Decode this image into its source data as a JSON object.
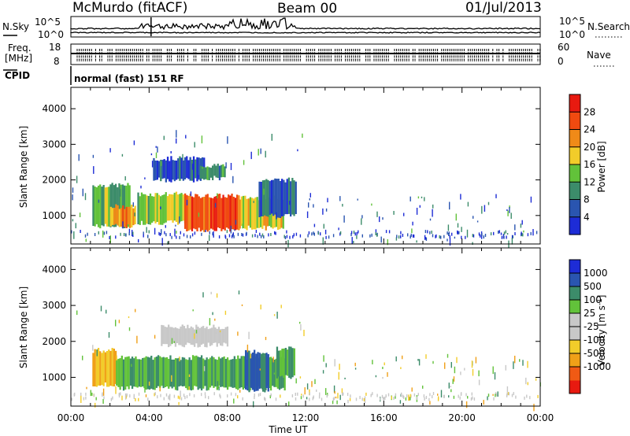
{
  "header": {
    "station": "McMurdo (fitACF)",
    "beam": "Beam 00",
    "date": "01/Jul/2013"
  },
  "noise_panel": {
    "left_label": "N.Sky",
    "right_label": "N.Search",
    "left_ticks": [
      "10^5",
      "10^0"
    ],
    "right_ticks": [
      "10^5",
      "10^0"
    ]
  },
  "freq_panel": {
    "left_label_1": "Freq.",
    "left_label_2": "[MHz]",
    "left_ticks": [
      "18",
      "8"
    ],
    "right_label": "Nave",
    "right_ticks": [
      "60",
      "0"
    ]
  },
  "cpid": {
    "label": "CPID",
    "text": "normal (fast) 151 RF"
  },
  "axes": {
    "ylabel": "Slant Range [km]",
    "xlabel": "Time UT",
    "x_ticks": [
      "00:00",
      "04:00",
      "08:00",
      "12:00",
      "16:00",
      "20:00",
      "00:00"
    ],
    "y_ticks": [
      "1000",
      "2000",
      "3000",
      "4000"
    ]
  },
  "colors": {
    "power": [
      "#1d2cd6",
      "#2a55b0",
      "#3c8c6a",
      "#62c23a",
      "#f2cc2a",
      "#f08a18",
      "#f04a10",
      "#e81a10"
    ],
    "velocity": [
      "#e81a10",
      "#f05a14",
      "#f0a018",
      "#f2cc2a",
      "#c8c8c8",
      "#c8c8c8",
      "#62c23a",
      "#3c8c6a",
      "#2a55b0",
      "#1d2cd6"
    ]
  },
  "chart_data": [
    {
      "type": "heatmap",
      "title": "",
      "xlabel": "",
      "ylabel": "Slant Range [km]",
      "xlim": [
        0,
        24
      ],
      "ylim": [
        200,
        4600
      ],
      "colorbar": {
        "label": "Power [dB]",
        "ticks": [
          "4",
          "8",
          "12",
          "16",
          "20",
          "24",
          "28"
        ],
        "range": [
          0,
          32
        ]
      },
      "regions": [
        {
          "t0": 1.1,
          "t1": 3.0,
          "r0": 700,
          "r1": 1850,
          "value": 13
        },
        {
          "t0": 2.0,
          "t1": 3.3,
          "r0": 700,
          "r1": 1250,
          "value": 21
        },
        {
          "t0": 3.4,
          "t1": 5.8,
          "r0": 800,
          "r1": 1600,
          "value": 15
        },
        {
          "t0": 5.8,
          "t1": 8.6,
          "r0": 600,
          "r1": 1550,
          "value": 27
        },
        {
          "t0": 8.6,
          "t1": 10.9,
          "r0": 650,
          "r1": 1500,
          "value": 19
        },
        {
          "t0": 9.6,
          "t1": 11.5,
          "r0": 1000,
          "r1": 2000,
          "value": 7
        },
        {
          "t0": 4.2,
          "t1": 6.8,
          "r0": 2000,
          "r1": 2600,
          "value": 5
        },
        {
          "t0": 6.5,
          "t1": 7.9,
          "r0": 2050,
          "r1": 2400,
          "value": 11
        }
      ]
    },
    {
      "type": "heatmap",
      "title": "",
      "xlabel": "Time UT",
      "ylabel": "Slant Range [km]",
      "xlim": [
        0,
        24
      ],
      "ylim": [
        200,
        4600
      ],
      "colorbar": {
        "label": "Velocity [m s^-1]",
        "ticks": [
          "1000",
          "500",
          "100",
          "25",
          "-25",
          "-100",
          "-500",
          "-1000"
        ]
      },
      "regions": [
        {
          "t0": 1.1,
          "t1": 2.3,
          "r0": 800,
          "r1": 1750,
          "value": -100
        },
        {
          "t0": 2.3,
          "t1": 10.9,
          "r0": 700,
          "r1": 1550,
          "value": 100
        },
        {
          "t0": 4.6,
          "t1": 8.0,
          "r0": 1900,
          "r1": 2400,
          "value": 0
        },
        {
          "t0": 8.9,
          "t1": 10.1,
          "r0": 650,
          "r1": 1700,
          "value": 500
        },
        {
          "t0": 10.5,
          "t1": 11.4,
          "r0": 1000,
          "r1": 1800,
          "value": 100
        }
      ]
    }
  ]
}
